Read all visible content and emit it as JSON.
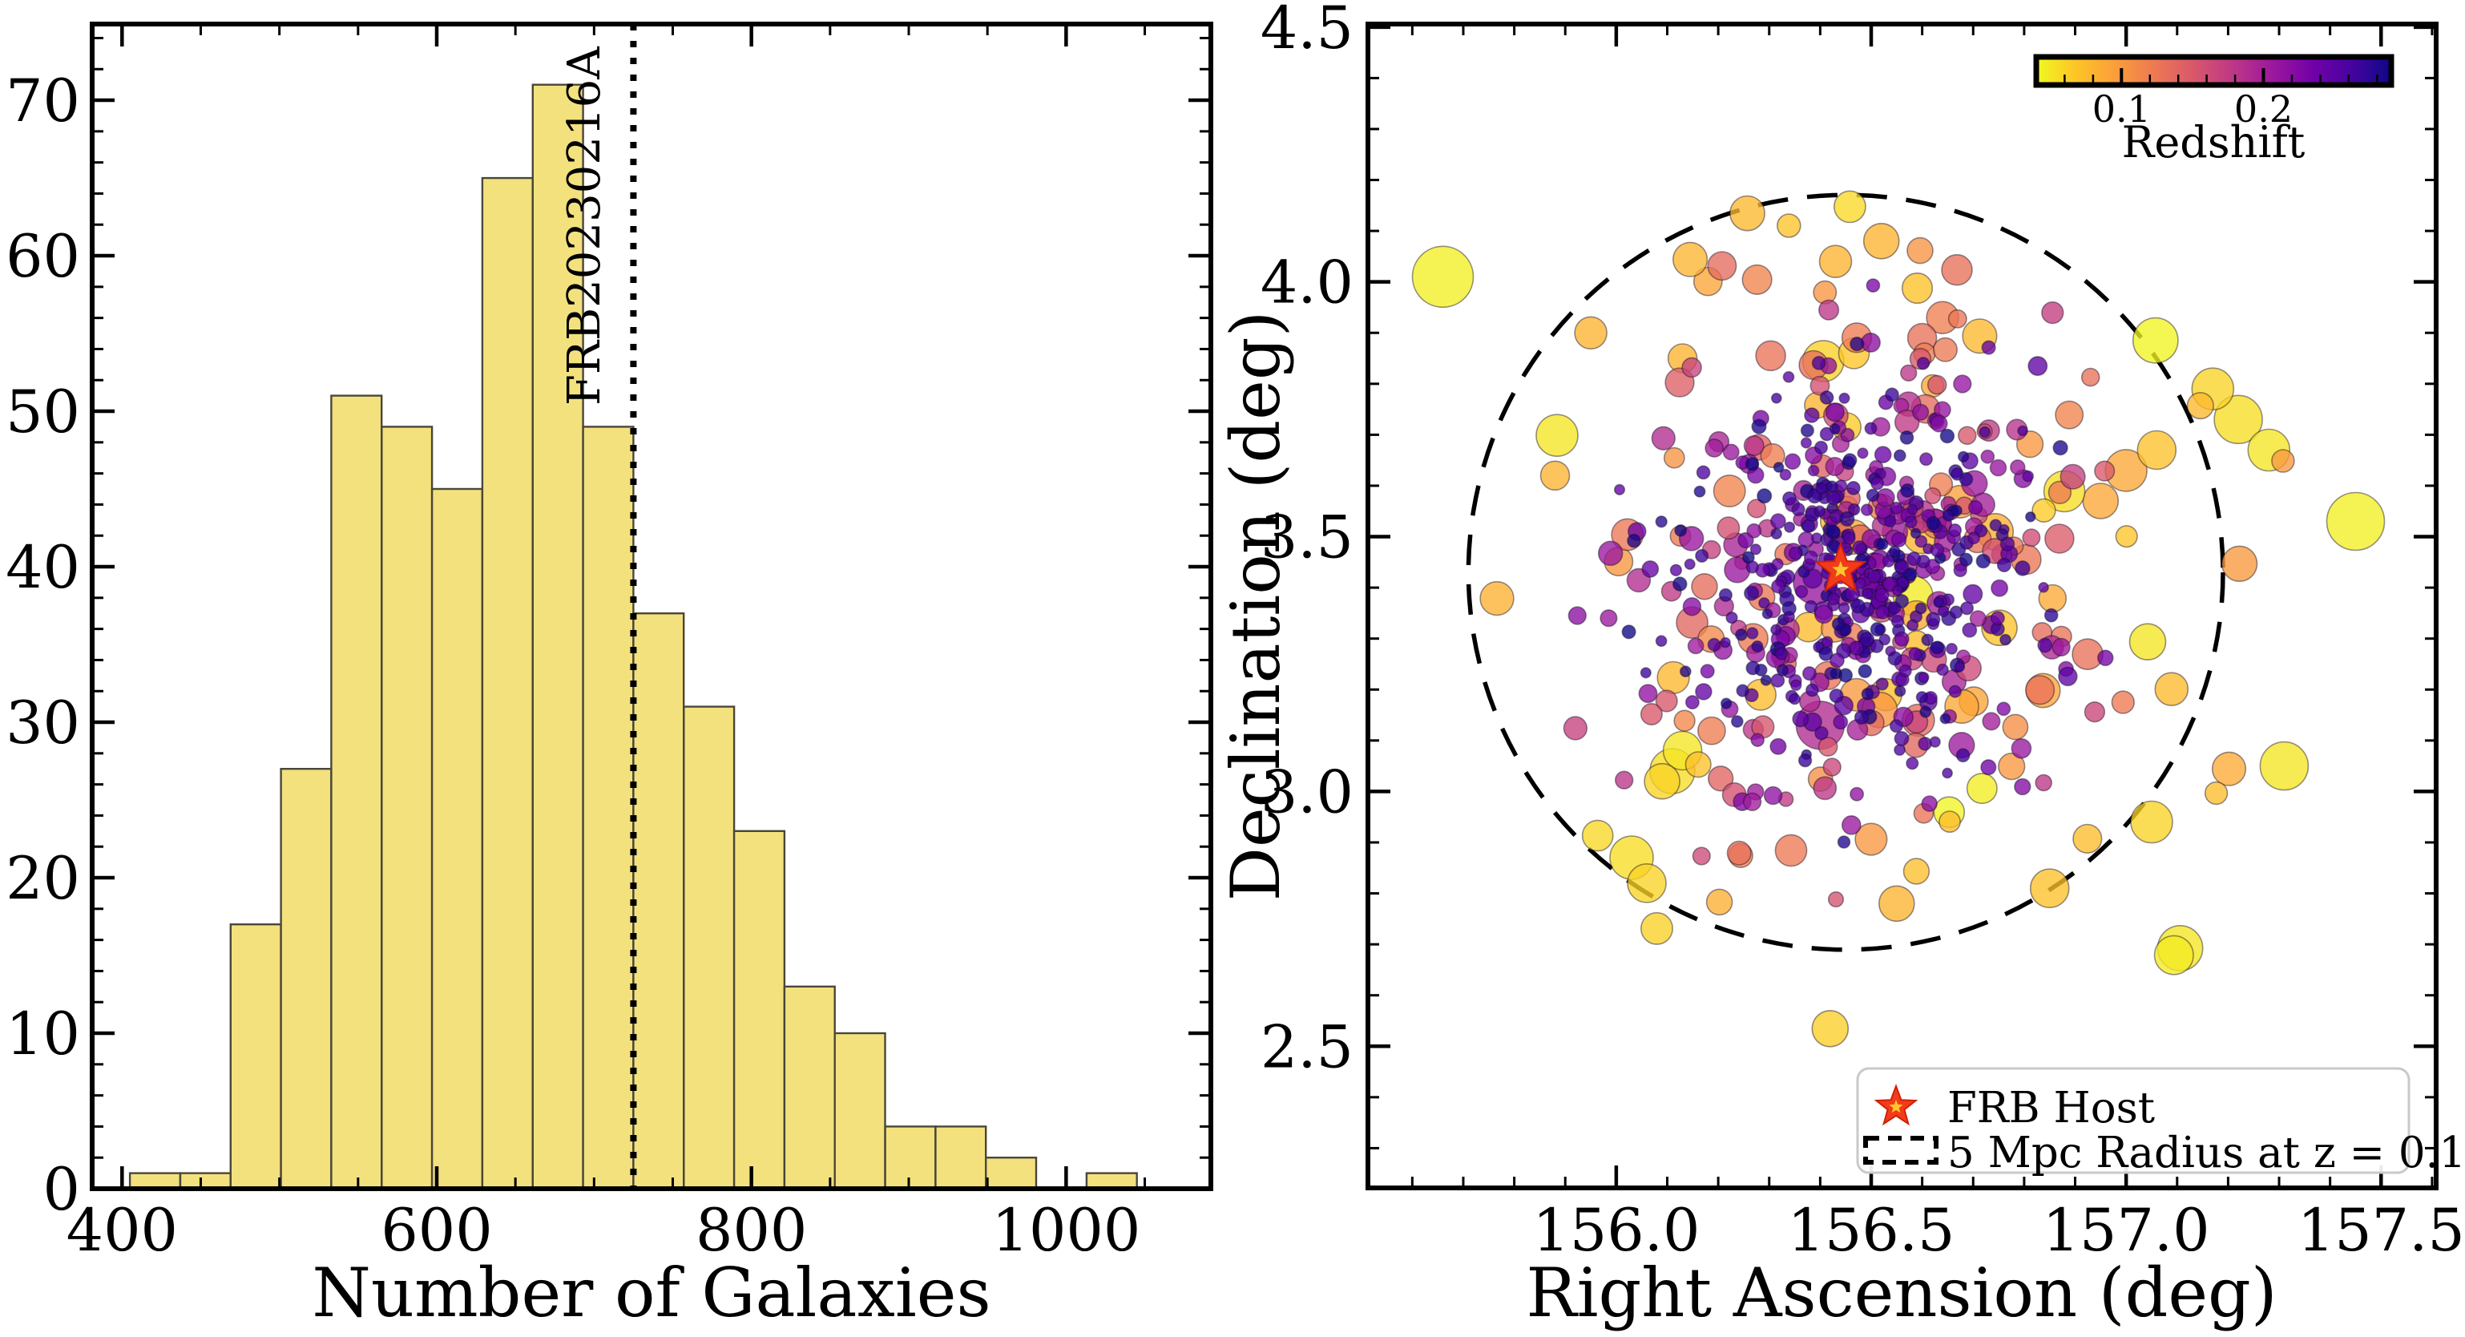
{
  "figure": {
    "background": "#ffffff",
    "description": "Two-panel astronomy figure: galaxy count histogram with FRB marker line, and RA/Dec galaxy scatter colored by redshift"
  },
  "chart_data": [
    {
      "type": "histogram",
      "title": "",
      "xlabel": "Number of Galaxies",
      "ylabel": "",
      "bin_start": 405,
      "bin_width": 32,
      "bin_edges": [
        405,
        437,
        469,
        501,
        533,
        565,
        597,
        629,
        661,
        693,
        725,
        757,
        789,
        821,
        853,
        885,
        917,
        949,
        981,
        1013,
        1045
      ],
      "counts": [
        1,
        1,
        17,
        27,
        51,
        49,
        45,
        65,
        71,
        49,
        37,
        31,
        23,
        13,
        10,
        4,
        4,
        2,
        0,
        1
      ],
      "xlim": [
        381,
        1092
      ],
      "ylim": [
        0,
        74.9
      ],
      "x_ticks": [
        400,
        600,
        800,
        1000
      ],
      "y_ticks": [
        0,
        10,
        20,
        30,
        40,
        50,
        60,
        70
      ],
      "x_minor_step": 50,
      "y_minor_step": 2,
      "bar_color": "#f3e17e",
      "bar_edge_color": "#4a463a",
      "vline": {
        "x": 725,
        "label": "FRB20230216A",
        "style": "dotted",
        "color": "#000000"
      }
    },
    {
      "type": "scatter",
      "title": "",
      "xlabel": "Right Ascension (deg)",
      "ylabel": "Declination (deg)",
      "xlim": [
        155.513,
        157.608
      ],
      "ylim": [
        2.222,
        4.506
      ],
      "x_ticks": [
        156.0,
        156.5,
        157.0,
        157.5
      ],
      "y_ticks": [
        2.5,
        3.0,
        3.5,
        4.0,
        4.5
      ],
      "minor_step": 0.1,
      "grid": false,
      "frb_host": {
        "ra": 156.44,
        "dec": 3.435,
        "marker": "star",
        "color": "#f23c19",
        "inner_color": "#ffc72e"
      },
      "circle": {
        "ra": 156.45,
        "dec": 3.43,
        "radius_deg": 0.74,
        "style": "dashed",
        "color": "#000000"
      },
      "colorbar": {
        "label": "Redshift",
        "zmin": 0.04,
        "zmax": 0.29,
        "ticks": [
          0.1,
          0.2
        ],
        "minor_step": 0.02,
        "colormap": "plasma_r",
        "stops": [
          "#f0f921",
          "#fdc527",
          "#fb9e3a",
          "#ed7953",
          "#d8576b",
          "#bd3786",
          "#9c179e",
          "#7201a8",
          "#46039f",
          "#0d0887"
        ]
      },
      "legend": {
        "position": "lower right",
        "items": [
          {
            "marker": "star",
            "label": "FRB Host"
          },
          {
            "marker": "dashed-box",
            "label": "5 Mpc Radius at z = 0.1"
          }
        ]
      },
      "point_style": {
        "alpha": 0.78,
        "edge": "rgba(25,15,35,0.45)",
        "edge_width": 1.6
      },
      "featured_points": [
        {
          "ra": 155.66,
          "dec": 4.01,
          "z": 0.045,
          "r": 38
        },
        {
          "ra": 157.45,
          "dec": 3.53,
          "z": 0.045,
          "r": 36
        },
        {
          "ra": 156.03,
          "dec": 2.87,
          "z": 0.055,
          "r": 27
        },
        {
          "ra": 156.06,
          "dec": 2.82,
          "z": 0.06,
          "r": 24
        },
        {
          "ra": 156.11,
          "dec": 3.04,
          "z": 0.055,
          "r": 28
        },
        {
          "ra": 156.13,
          "dec": 3.08,
          "z": 0.05,
          "r": 24
        },
        {
          "ra": 156.09,
          "dec": 3.02,
          "z": 0.06,
          "r": 22
        },
        {
          "ra": 157.22,
          "dec": 3.73,
          "z": 0.055,
          "r": 30
        },
        {
          "ra": 157.28,
          "dec": 3.67,
          "z": 0.05,
          "r": 26
        },
        {
          "ra": 157.17,
          "dec": 3.79,
          "z": 0.06,
          "r": 26
        },
        {
          "ra": 157.31,
          "dec": 3.05,
          "z": 0.05,
          "r": 30
        },
        {
          "ra": 157.05,
          "dec": 2.94,
          "z": 0.06,
          "r": 26
        },
        {
          "ra": 156.52,
          "dec": 4.08,
          "z": 0.08,
          "r": 22
        },
        {
          "ra": 156.43,
          "dec": 4.04,
          "z": 0.08,
          "r": 20
        },
        {
          "ra": 156.4,
          "dec": 3.13,
          "z": 0.19,
          "r": 30
        },
        {
          "ra": 156.39,
          "dec": 3.41,
          "z": 0.21,
          "r": 27
        },
        {
          "ra": 156.85,
          "dec": 2.81,
          "z": 0.07,
          "r": 24
        },
        {
          "ra": 156.55,
          "dec": 2.78,
          "z": 0.08,
          "r": 22
        },
        {
          "ra": 157.0,
          "dec": 3.63,
          "z": 0.09,
          "r": 26
        },
        {
          "ra": 157.06,
          "dec": 3.67,
          "z": 0.07,
          "r": 24
        },
        {
          "ra": 156.95,
          "dec": 3.57,
          "z": 0.09,
          "r": 22
        },
        {
          "ra": 155.95,
          "dec": 3.9,
          "z": 0.08,
          "r": 20
        },
        {
          "ra": 156.64,
          "dec": 3.93,
          "z": 0.12,
          "r": 20
        },
        {
          "ra": 156.6,
          "dec": 3.89,
          "z": 0.13,
          "r": 18
        },
        {
          "ra": 156.13,
          "dec": 3.85,
          "z": 0.08,
          "r": 18
        },
        {
          "ra": 155.88,
          "dec": 3.62,
          "z": 0.08,
          "r": 18
        }
      ],
      "point_groups": [
        {
          "name": "yellow-foreground",
          "n": 14,
          "center": [
            156.6,
            3.35
          ],
          "sigma": 0.55,
          "z_range": [
            0.04,
            0.065
          ],
          "r_range": [
            18,
            30
          ],
          "max_dist": 0.85,
          "seed": 11
        },
        {
          "name": "orange-outskirts",
          "n": 48,
          "center": [
            156.55,
            3.42
          ],
          "sigma": 0.42,
          "z_range": [
            0.065,
            0.105
          ],
          "r_range": [
            13,
            24
          ],
          "max_dist": 0.8,
          "seed": 22
        },
        {
          "name": "pink-members",
          "n": 62,
          "center": [
            156.5,
            3.42
          ],
          "sigma": 0.34,
          "z_range": [
            0.1,
            0.15
          ],
          "r_range": [
            11,
            20
          ],
          "max_dist": 0.7,
          "seed": 33
        },
        {
          "name": "purple-members",
          "n": 95,
          "center": [
            156.48,
            3.43
          ],
          "sigma": 0.27,
          "z_range": [
            0.15,
            0.21
          ],
          "r_range": [
            9,
            16
          ],
          "max_dist": 0.65,
          "seed": 44
        },
        {
          "name": "indigo-members",
          "n": 140,
          "center": [
            156.47,
            3.43
          ],
          "sigma": 0.21,
          "z_range": [
            0.2,
            0.25
          ],
          "r_range": [
            8,
            12
          ],
          "max_dist": 0.6,
          "seed": 55
        },
        {
          "name": "navy-core",
          "n": 320,
          "center": [
            156.47,
            3.42
          ],
          "sigma": 0.16,
          "z_range": [
            0.24,
            0.29
          ],
          "r_range": [
            6,
            9
          ],
          "max_dist": 0.55,
          "seed": 66
        }
      ]
    }
  ]
}
